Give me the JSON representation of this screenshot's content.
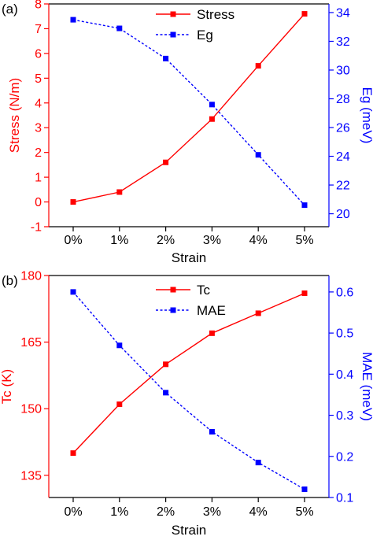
{
  "chart_data": [
    {
      "type": "line",
      "panel_label": "(a)",
      "categories": [
        "0%",
        "1%",
        "2%",
        "3%",
        "4%",
        "5%"
      ],
      "xlabel": "Strain",
      "left_axis": {
        "label": "Stress (N/m)",
        "color": "#ff0000",
        "range": [
          -1,
          8
        ],
        "ticks": [
          "-1",
          "0",
          "1",
          "2",
          "3",
          "4",
          "5",
          "6",
          "7",
          "8"
        ],
        "tick_values": [
          -1,
          0,
          1,
          2,
          3,
          4,
          5,
          6,
          7,
          8
        ]
      },
      "right_axis": {
        "label": "Eg (meV)",
        "color": "#0000ff",
        "range": [
          19.1,
          34.6
        ],
        "ticks": [
          "20",
          "22",
          "24",
          "26",
          "28",
          "30",
          "32",
          "34"
        ],
        "tick_values": [
          20,
          22,
          24,
          26,
          28,
          30,
          32,
          34
        ]
      },
      "series": [
        {
          "name": "Stress",
          "axis": "left",
          "color": "#ff0000",
          "dash": "solid",
          "values": [
            0.0,
            0.4,
            1.6,
            3.35,
            5.5,
            7.6
          ]
        },
        {
          "name": "Eg",
          "axis": "right",
          "color": "#0000ff",
          "dash": "dotted",
          "values": [
            33.5,
            32.9,
            30.8,
            27.6,
            24.1,
            20.6
          ]
        }
      ],
      "legend_position": "top-center"
    },
    {
      "type": "line",
      "panel_label": "(b)",
      "categories": [
        "0%",
        "1%",
        "2%",
        "3%",
        "4%",
        "5%"
      ],
      "xlabel": "Strain",
      "left_axis": {
        "label": "Tc (K)",
        "color": "#ff0000",
        "range": [
          130,
          180
        ],
        "ticks": [
          "135",
          "150",
          "165",
          "180"
        ],
        "tick_values": [
          135,
          150,
          165,
          180
        ]
      },
      "right_axis": {
        "label": "MAE (meV)",
        "color": "#0000ff",
        "range": [
          0.1,
          0.64
        ],
        "ticks": [
          "0.1",
          "0.2",
          "0.3",
          "0.4",
          "0.5",
          "0.6"
        ],
        "tick_values": [
          0.1,
          0.2,
          0.3,
          0.4,
          0.5,
          0.6
        ]
      },
      "series": [
        {
          "name": "Tc",
          "axis": "left",
          "color": "#ff0000",
          "dash": "solid",
          "values": [
            140.0,
            151.0,
            160.0,
            167.0,
            171.5,
            176.0
          ]
        },
        {
          "name": "MAE",
          "axis": "right",
          "color": "#0000ff",
          "dash": "dotted",
          "values": [
            0.6,
            0.47,
            0.355,
            0.26,
            0.185,
            0.12
          ]
        }
      ],
      "legend_position": "top-center"
    }
  ]
}
